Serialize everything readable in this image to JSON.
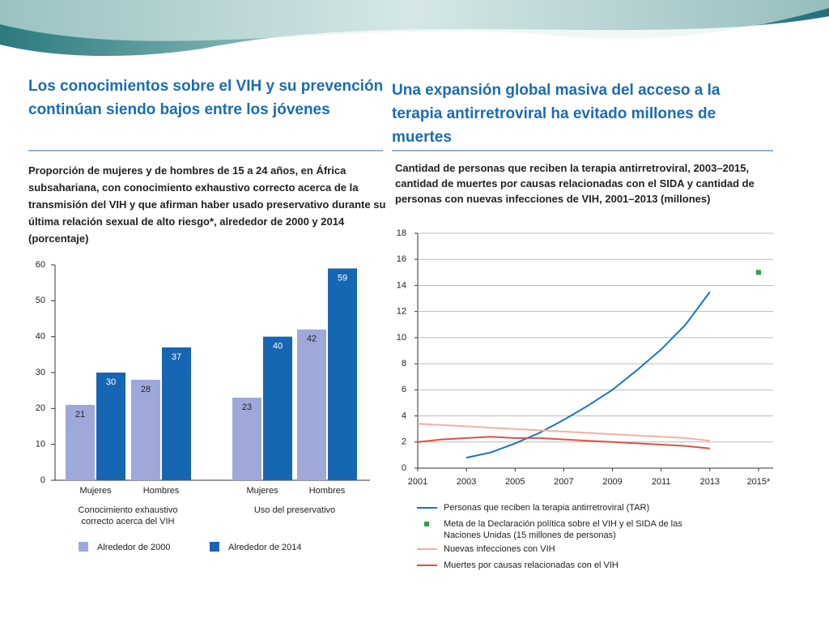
{
  "chart_data": [
    {
      "type": "bar",
      "heading": "Los conocimientos sobre el VIH y su prevención continúan siendo bajos entre los jóvenes",
      "title": "Proporción de mujeres y de hombres de 15 a 24 años, en África subsahariana, con conocimiento exhaustivo correcto acerca de la transmisión del VIH y que afirman haber usado preservativo durante su última relación sexual de alto riesgo*, alrededor de 2000 y 2014 (porcentaje)",
      "categories": [
        "Mujeres",
        "Hombres",
        "Mujeres",
        "Hombres"
      ],
      "groups": [
        "Conocimiento exhaustivo correcto acerca del VIH",
        "Uso del preservativo"
      ],
      "series": [
        {
          "name": "Alrededor de 2000",
          "color": "#9ea9da",
          "label_color": "#222222",
          "values": [
            21,
            28,
            23,
            42
          ]
        },
        {
          "name": "Alrededor de 2014",
          "color": "#1766b3",
          "label_color": "#ffffff",
          "values": [
            30,
            37,
            40,
            59
          ]
        }
      ],
      "ylim": [
        0,
        60
      ],
      "yticks": [
        0,
        10,
        20,
        30,
        40,
        50,
        60
      ],
      "grid": false
    },
    {
      "type": "line",
      "heading": "Una expansión global masiva del acceso a la terapia antirretroviral ha evitado millones de muertes",
      "title": "Cantidad de personas que reciben la terapia antirretroviral, 2003–2015, cantidad de muertes por causas relacionadas con el SIDA y cantidad de personas con nuevas infecciones de VIH, 2001–2013 (millones)",
      "x": [
        2001,
        2002,
        2003,
        2004,
        2005,
        2006,
        2007,
        2008,
        2009,
        2010,
        2011,
        2012,
        2013,
        2014,
        2015
      ],
      "series": [
        {
          "name": "Personas que reciben la terapia antirretroviral (TAR)",
          "color": "#1c74bc",
          "mode": "lines",
          "values": [
            null,
            null,
            0.8,
            1.2,
            1.9,
            2.7,
            3.7,
            4.8,
            6.0,
            7.5,
            9.1,
            11.0,
            13.5,
            null,
            null
          ]
        },
        {
          "name": "Meta de la Declaración política sobre el VIH y el SIDA de las Naciones Unidas (15 millones de personas)",
          "color": "#2e9e4f",
          "mode": "markers",
          "values": [
            null,
            null,
            null,
            null,
            null,
            null,
            null,
            null,
            null,
            null,
            null,
            null,
            null,
            null,
            15
          ]
        },
        {
          "name": "Nuevas infecciones con VIH",
          "color": "#f2b0a4",
          "mode": "lines",
          "values": [
            3.4,
            3.3,
            3.2,
            3.1,
            3.0,
            2.9,
            2.8,
            2.7,
            2.6,
            2.5,
            2.4,
            2.3,
            2.1,
            null,
            null
          ]
        },
        {
          "name": "Muertes por causas relacionadas con el VIH",
          "color": "#d9534a",
          "mode": "lines",
          "values": [
            2.0,
            2.2,
            2.3,
            2.4,
            2.3,
            2.3,
            2.2,
            2.1,
            2.0,
            1.9,
            1.8,
            1.7,
            1.5,
            null,
            null
          ]
        }
      ],
      "xlim": [
        2001,
        2015.6
      ],
      "xticks": [
        2001,
        2003,
        2005,
        2007,
        2009,
        2011,
        2013,
        {
          "value": 2015,
          "label": "2015*"
        }
      ],
      "ylim": [
        0,
        18
      ],
      "yticks": [
        0,
        2,
        4,
        6,
        8,
        10,
        12,
        14,
        16,
        18
      ],
      "grid": true
    }
  ]
}
